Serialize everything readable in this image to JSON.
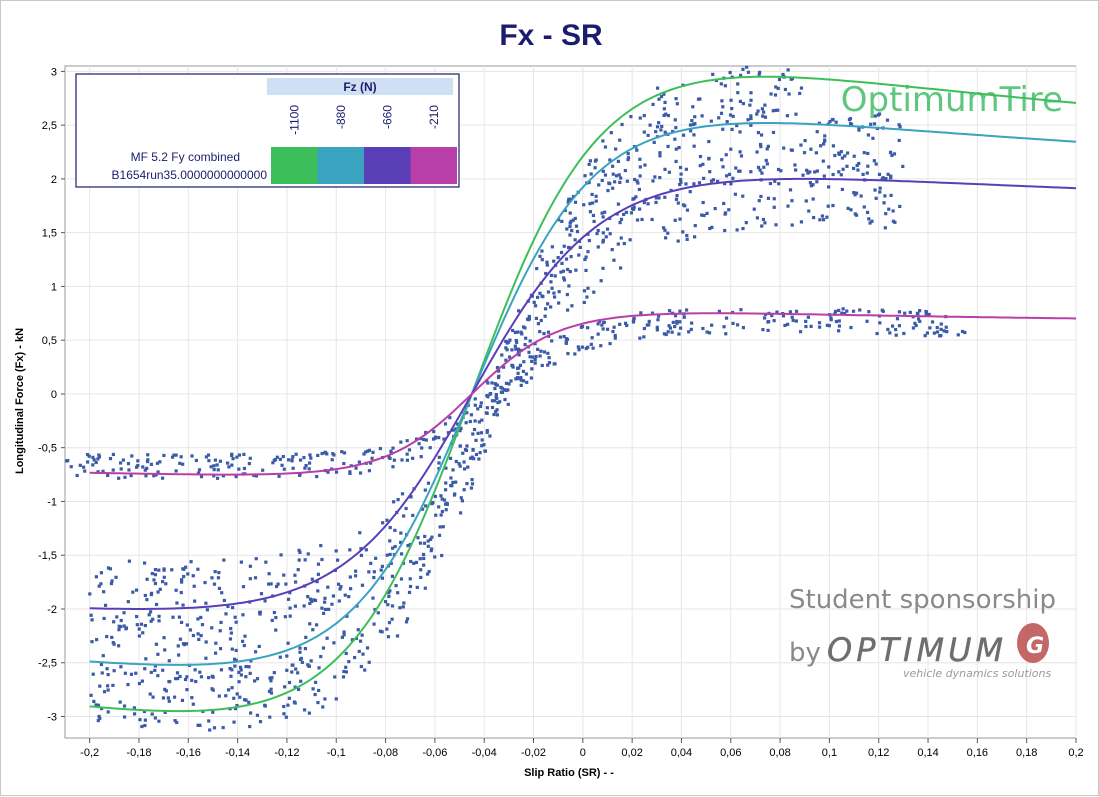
{
  "chart_data": {
    "type": "scatter",
    "title": "Fx - SR",
    "xlabel": "Slip Ratio (SR) - -",
    "ylabel": "Longitudinal Force (Fx) - kN",
    "xlim": [
      -0.21,
      0.2
    ],
    "ylim": [
      -3.2,
      3.05
    ],
    "grid": true,
    "x_ticks": [
      "-0,2",
      "-0,18",
      "-0,16",
      "-0,14",
      "-0,12",
      "-0,1",
      "-0,08",
      "-0,06",
      "-0,04",
      "-0,02",
      "0",
      "0,02",
      "0,04",
      "0,06",
      "0,08",
      "0,1",
      "0,12",
      "0,14",
      "0,16",
      "0,18",
      "0,2"
    ],
    "y_ticks": [
      "3",
      "2,5",
      "2",
      "1,5",
      "1",
      "0,5",
      "0",
      "-0,5",
      "-1",
      "-1,5",
      "-2",
      "-2,5",
      "-3"
    ],
    "legend": {
      "placement": "top-left",
      "title": "Fz (N)",
      "series_label_1": "MF 5.2 Fy combined",
      "series_label_2": "B1654run35.0000000000000",
      "loads": [
        "-1100",
        "-880",
        "-660",
        "-210"
      ]
    },
    "series": [
      {
        "name": "-1100",
        "color": "#3cbf5a",
        "D": 2.95,
        "B": 13.5,
        "C": 1.55,
        "x_min": -0.2,
        "x_max": 0.2
      },
      {
        "name": "-880",
        "color": "#3aa3c0",
        "D": 2.52,
        "B": 14.5,
        "C": 1.5,
        "x_min": -0.2,
        "x_max": 0.2
      },
      {
        "name": "-660",
        "color": "#5a3eb8",
        "D": 2.0,
        "B": 14.0,
        "C": 1.45,
        "x_min": -0.2,
        "x_max": 0.2
      },
      {
        "name": "-210",
        "color": "#b83ea8",
        "D": 0.75,
        "B": 21.0,
        "C": 1.4,
        "x_min": -0.2,
        "x_max": 0.2
      }
    ],
    "measured_points": {
      "color": "#3b5ba8",
      "bands": [
        {
          "load": "-1100",
          "x_min": -0.2,
          "x_max": 0.09,
          "D": 2.85,
          "B": 13.5,
          "C": 1.55,
          "spread": 0.28
        },
        {
          "load": "-880",
          "x_min": -0.2,
          "x_max": 0.13,
          "D": 2.35,
          "B": 14.0,
          "C": 1.5,
          "spread": 0.3
        },
        {
          "load": "-660",
          "x_min": -0.2,
          "x_max": 0.13,
          "D": 1.85,
          "B": 14.0,
          "C": 1.45,
          "spread": 0.3
        },
        {
          "load": "-210",
          "x_min": -0.21,
          "x_max": 0.155,
          "D": 0.68,
          "B": 20.0,
          "C": 1.4,
          "spread": 0.12
        }
      ]
    }
  },
  "watermarks": {
    "brand": "OptimumTire",
    "sponsor_line": "Student sponsorship",
    "by": "by",
    "logo": "OPTIMUM",
    "tagline": "vehicle dynamics solutions"
  }
}
